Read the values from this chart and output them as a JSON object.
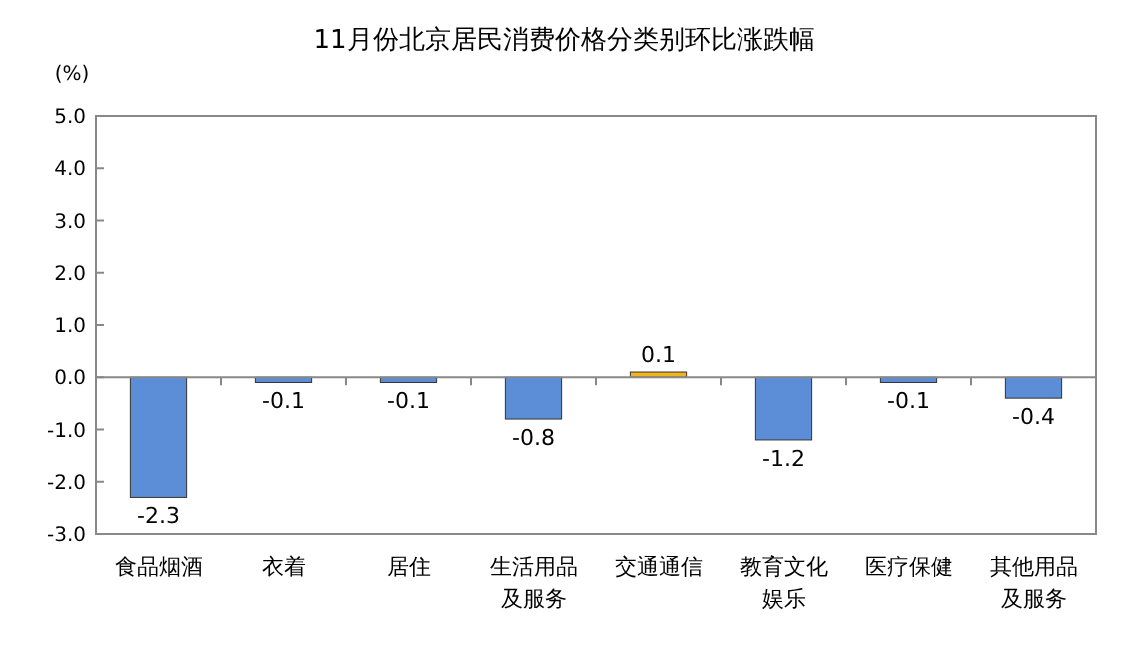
{
  "chart_data": {
    "type": "bar",
    "title": "11月份北京居民消费价格分类别环比涨跌幅",
    "ylabel": "(%)",
    "categories": [
      "食品烟酒",
      "衣着",
      "居住",
      "生活用品及服务",
      "交通通信",
      "教育文化娱乐",
      "医疗保健",
      "其他用品及服务"
    ],
    "values": [
      -2.3,
      -0.1,
      -0.1,
      -0.8,
      0.1,
      -1.2,
      -0.1,
      -0.4
    ],
    "colors": [
      "#5b8ed6",
      "#5b8ed6",
      "#5b8ed6",
      "#5b8ed6",
      "#f2b418",
      "#5b8ed6",
      "#5b8ed6",
      "#5b8ed6"
    ],
    "ylim": [
      -3,
      5
    ],
    "yticks": [
      {
        "value": -3,
        "label": "-3.0"
      },
      {
        "value": -2,
        "label": "-2.0"
      },
      {
        "value": -1,
        "label": "-1.0"
      },
      {
        "value": 0,
        "label": "0.0"
      },
      {
        "value": 1,
        "label": "1.0"
      },
      {
        "value": 2,
        "label": "2.0"
      },
      {
        "value": 3,
        "label": "3.0"
      },
      {
        "value": 4,
        "label": "4.0"
      },
      {
        "value": 5,
        "label": "5.0"
      }
    ],
    "data_labels": true
  }
}
